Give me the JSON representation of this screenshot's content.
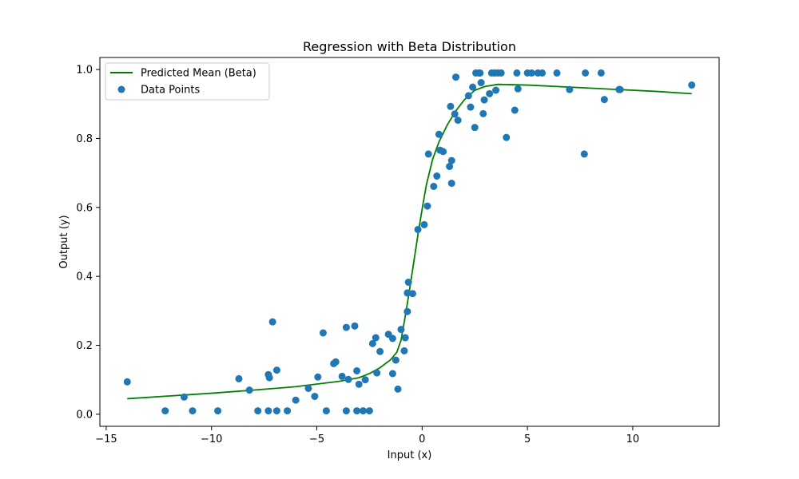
{
  "chart_data": {
    "type": "scatter",
    "title": "Regression with Beta Distribution",
    "xlabel": "Input (x)",
    "ylabel": "Output (y)",
    "xlim": [
      -15.3,
      14.1
    ],
    "ylim": [
      -0.035,
      1.035
    ],
    "xticks": [
      -15,
      -10,
      -5,
      0,
      5,
      10
    ],
    "yticks": [
      0.0,
      0.2,
      0.4,
      0.6,
      0.8,
      1.0
    ],
    "xtick_labels": [
      "−15",
      "−10",
      "−5",
      "0",
      "5",
      "10"
    ],
    "ytick_labels": [
      "0.0",
      "0.2",
      "0.4",
      "0.6",
      "0.8",
      "1.0"
    ],
    "grid": false,
    "legend_position": "top-left",
    "series": [
      {
        "name": "Predicted Mean (Beta)",
        "kind": "line",
        "color": "#008000",
        "points": [
          [
            -14.0,
            0.045
          ],
          [
            -12.0,
            0.053
          ],
          [
            -10.0,
            0.061
          ],
          [
            -8.0,
            0.07
          ],
          [
            -6.0,
            0.08
          ],
          [
            -4.0,
            0.095
          ],
          [
            -3.0,
            0.106
          ],
          [
            -2.5,
            0.118
          ],
          [
            -2.0,
            0.135
          ],
          [
            -1.5,
            0.158
          ],
          [
            -1.2,
            0.18
          ],
          [
            -1.0,
            0.215
          ],
          [
            -0.8,
            0.285
          ],
          [
            -0.6,
            0.36
          ],
          [
            -0.4,
            0.44
          ],
          [
            -0.2,
            0.52
          ],
          [
            0.0,
            0.595
          ],
          [
            0.2,
            0.665
          ],
          [
            0.5,
            0.74
          ],
          [
            0.8,
            0.79
          ],
          [
            1.2,
            0.84
          ],
          [
            1.6,
            0.88
          ],
          [
            2.0,
            0.912
          ],
          [
            2.5,
            0.94
          ],
          [
            3.0,
            0.951
          ],
          [
            3.6,
            0.957
          ],
          [
            5.0,
            0.955
          ],
          [
            7.0,
            0.949
          ],
          [
            9.0,
            0.943
          ],
          [
            11.0,
            0.937
          ],
          [
            12.8,
            0.93
          ]
        ]
      },
      {
        "name": "Data Points",
        "kind": "scatter",
        "color": "#1f77b4",
        "points": [
          [
            -14.0,
            0.094
          ],
          [
            -12.2,
            0.01
          ],
          [
            -11.3,
            0.05
          ],
          [
            -10.9,
            0.01
          ],
          [
            -9.7,
            0.01
          ],
          [
            -8.7,
            0.103
          ],
          [
            -8.2,
            0.07
          ],
          [
            -7.8,
            0.01
          ],
          [
            -7.3,
            0.115
          ],
          [
            -7.25,
            0.106
          ],
          [
            -7.3,
            0.01
          ],
          [
            -7.1,
            0.268
          ],
          [
            -6.9,
            0.01
          ],
          [
            -6.9,
            0.128
          ],
          [
            -6.4,
            0.01
          ],
          [
            -6.0,
            0.041
          ],
          [
            -5.4,
            0.075
          ],
          [
            -5.1,
            0.052
          ],
          [
            -4.95,
            0.108
          ],
          [
            -4.7,
            0.236
          ],
          [
            -4.55,
            0.01
          ],
          [
            -4.2,
            0.147
          ],
          [
            -4.1,
            0.152
          ],
          [
            -3.8,
            0.11
          ],
          [
            -3.6,
            0.252
          ],
          [
            -3.6,
            0.01
          ],
          [
            -3.5,
            0.101
          ],
          [
            -3.2,
            0.256
          ],
          [
            -3.1,
            0.126
          ],
          [
            -3.1,
            0.01
          ],
          [
            -3.0,
            0.087
          ],
          [
            -2.8,
            0.01
          ],
          [
            -2.7,
            0.1
          ],
          [
            -2.5,
            0.01
          ],
          [
            -2.35,
            0.205
          ],
          [
            -2.2,
            0.222
          ],
          [
            -2.15,
            0.12
          ],
          [
            -2.0,
            0.182
          ],
          [
            -1.6,
            0.232
          ],
          [
            -1.4,
            0.118
          ],
          [
            -1.4,
            0.22
          ],
          [
            -1.25,
            0.157
          ],
          [
            -1.15,
            0.073
          ],
          [
            -1.0,
            0.246
          ],
          [
            -0.85,
            0.184
          ],
          [
            -0.8,
            0.222
          ],
          [
            -0.7,
            0.298
          ],
          [
            -0.7,
            0.352
          ],
          [
            -0.65,
            0.383
          ],
          [
            -0.45,
            0.35
          ],
          [
            -0.2,
            0.536
          ],
          [
            0.1,
            0.55
          ],
          [
            0.25,
            0.604
          ],
          [
            0.3,
            0.755
          ],
          [
            0.55,
            0.661
          ],
          [
            0.7,
            0.691
          ],
          [
            0.8,
            0.812
          ],
          [
            0.85,
            0.766
          ],
          [
            1.0,
            0.762
          ],
          [
            1.3,
            0.719
          ],
          [
            1.35,
            0.893
          ],
          [
            1.4,
            0.736
          ],
          [
            1.4,
            0.67
          ],
          [
            1.55,
            0.871
          ],
          [
            1.6,
            0.978
          ],
          [
            1.7,
            0.853
          ],
          [
            2.2,
            0.924
          ],
          [
            2.3,
            0.891
          ],
          [
            2.4,
            0.949
          ],
          [
            2.5,
            0.832
          ],
          [
            2.55,
            0.99
          ],
          [
            2.7,
            0.99
          ],
          [
            2.75,
            0.99
          ],
          [
            2.8,
            0.962
          ],
          [
            2.9,
            0.872
          ],
          [
            2.95,
            0.912
          ],
          [
            3.2,
            0.93
          ],
          [
            3.3,
            0.99
          ],
          [
            3.45,
            0.99
          ],
          [
            3.5,
            0.94
          ],
          [
            3.6,
            0.99
          ],
          [
            3.75,
            0.99
          ],
          [
            4.0,
            0.803
          ],
          [
            4.4,
            0.882
          ],
          [
            4.5,
            0.99
          ],
          [
            4.55,
            0.944
          ],
          [
            5.0,
            0.99
          ],
          [
            5.2,
            0.99
          ],
          [
            5.5,
            0.99
          ],
          [
            5.7,
            0.99
          ],
          [
            6.4,
            0.99
          ],
          [
            7.0,
            0.942
          ],
          [
            7.7,
            0.755
          ],
          [
            7.75,
            0.99
          ],
          [
            8.5,
            0.99
          ],
          [
            8.65,
            0.913
          ],
          [
            9.35,
            0.942
          ],
          [
            9.4,
            0.942
          ],
          [
            12.8,
            0.955
          ]
        ]
      }
    ]
  }
}
